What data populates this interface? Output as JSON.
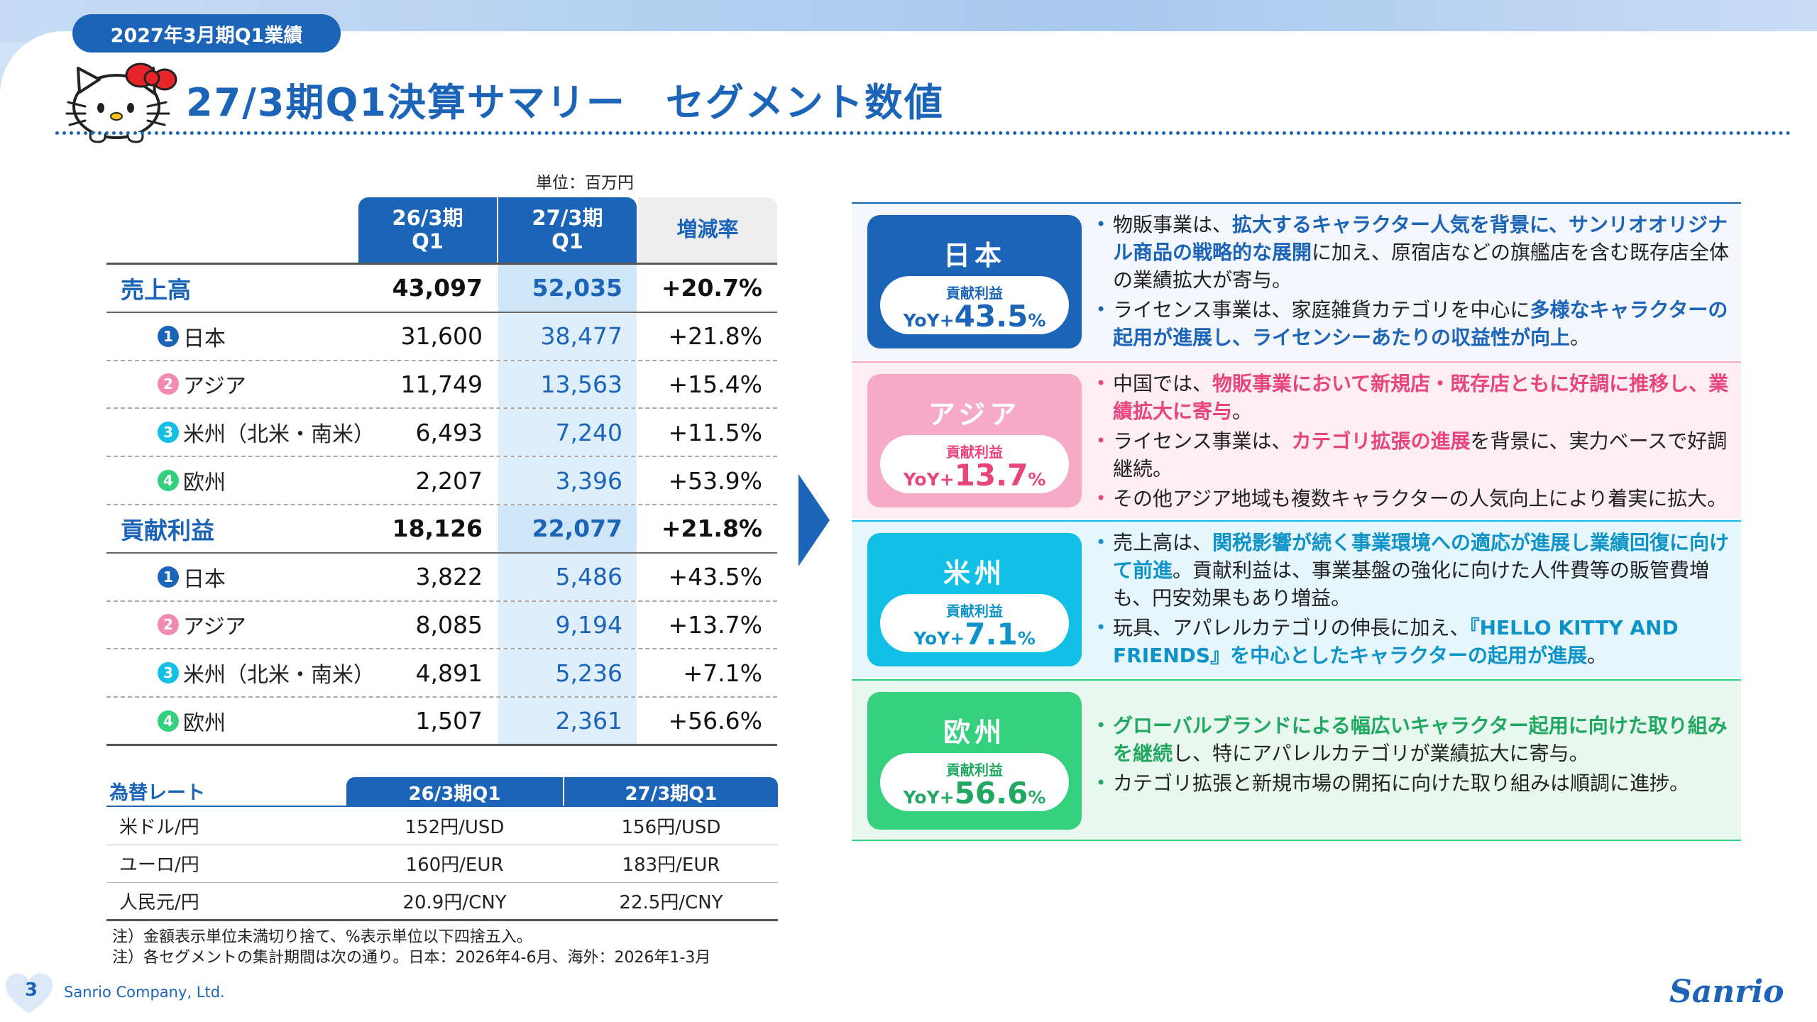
{
  "header": {
    "period_tag": "2027年3月期Q1業績",
    "title": "27/3期Q1決算サマリー　セグメント数値"
  },
  "table": {
    "unit": "単位：百万円",
    "col_prev": "26/3期\nQ1",
    "col_prev_l1": "26/3期",
    "col_prev_l2": "Q1",
    "col_curr_l1": "27/3期",
    "col_curr_l2": "Q1",
    "col_change": "増減率",
    "rows": [
      {
        "label": "売上高",
        "badge": "",
        "prev": "43,097",
        "curr": "52,035",
        "change": "+20.7%"
      },
      {
        "label": "日本",
        "badge": "1",
        "prev": "31,600",
        "curr": "38,477",
        "change": "+21.8%"
      },
      {
        "label": "アジア",
        "badge": "2",
        "prev": "11,749",
        "curr": "13,563",
        "change": "+15.4%"
      },
      {
        "label": "米州（北米・南米）",
        "badge": "3",
        "prev": "6,493",
        "curr": "7,240",
        "change": "+11.5%"
      },
      {
        "label": "欧州",
        "badge": "4",
        "prev": "2,207",
        "curr": "3,396",
        "change": "+53.9%"
      },
      {
        "label": "貢献利益",
        "badge": "",
        "prev": "18,126",
        "curr": "22,077",
        "change": "+21.8%"
      },
      {
        "label": "日本",
        "badge": "1",
        "prev": "3,822",
        "curr": "5,486",
        "change": "+43.5%"
      },
      {
        "label": "アジア",
        "badge": "2",
        "prev": "8,085",
        "curr": "9,194",
        "change": "+13.7%"
      },
      {
        "label": "米州（北米・南米）",
        "badge": "3",
        "prev": "4,891",
        "curr": "5,236",
        "change": "+7.1%"
      },
      {
        "label": "欧州",
        "badge": "4",
        "prev": "1,507",
        "curr": "2,361",
        "change": "+56.6%"
      }
    ]
  },
  "fx": {
    "title": "為替レート",
    "col_a": "26/3期Q1",
    "col_b": "27/3期Q1",
    "rows": [
      {
        "name": "米ドル/円",
        "a": "152円/USD",
        "b": "156円/USD"
      },
      {
        "name": "ユーロ/円",
        "a": "160円/EUR",
        "b": "183円/EUR"
      },
      {
        "name": "人民元/円",
        "a": "20.9円/CNY",
        "b": "22.5円/CNY"
      }
    ]
  },
  "notes": [
    "注）金額表示単位未満切り捨て、%表示単位以下四捨五入。",
    "注）各セグメントの集計期間は次の通り。日本：2026年4-6月、海外：2026年1-3月"
  ],
  "footer": {
    "page": "3",
    "company": "Sanrio Company, Ltd.",
    "logo": "Sanrio"
  },
  "segments": [
    {
      "name": "日本",
      "pill_label": "貢献利益",
      "yoy_prefix": "YoY+",
      "yoy_value": "43.5",
      "yoy_unit": "%",
      "bullets": [
        [
          {
            "t": "物販事業は、",
            "h": false
          },
          {
            "t": "拡大するキャラクター人気を背景に、サンリオオリジナル商品の戦略的な展開",
            "h": true
          },
          {
            "t": "に加え、原宿店などの旗艦店を含む既存店全体の業績拡大が寄与。",
            "h": false
          }
        ],
        [
          {
            "t": "ライセンス事業は、家庭雑貨カテゴリを中心に",
            "h": false
          },
          {
            "t": "多様なキャラクターの起用が進展し、ライセンシーあたりの収益性が向上",
            "h": true
          },
          {
            "t": "。",
            "h": false
          }
        ]
      ]
    },
    {
      "name": "アジア",
      "pill_label": "貢献利益",
      "yoy_prefix": "YoY+",
      "yoy_value": "13.7",
      "yoy_unit": "%",
      "bullets": [
        [
          {
            "t": "中国では、",
            "h": false
          },
          {
            "t": "物販事業において新規店・既存店ともに好調に推移し、業績拡大に寄与",
            "h": true
          },
          {
            "t": "。",
            "h": false
          }
        ],
        [
          {
            "t": "ライセンス事業は、",
            "h": false
          },
          {
            "t": "カテゴリ拡張の進展",
            "h": true
          },
          {
            "t": "を背景に、実力ベースで好調継続。",
            "h": false
          }
        ],
        [
          {
            "t": "その他アジア地域も複数キャラクターの人気向上により着実に拡大。",
            "h": false
          }
        ]
      ]
    },
    {
      "name": "米州",
      "pill_label": "貢献利益",
      "yoy_prefix": "YoY+",
      "yoy_value": "7.1",
      "yoy_unit": "%",
      "bullets": [
        [
          {
            "t": "売上高は、",
            "h": false
          },
          {
            "t": "関税影響が続く事業環境への適応が進展し業績回復に向けて前進",
            "h": true
          },
          {
            "t": "。貢献利益は、事業基盤の強化に向けた人件費等の販管費増も、円安効果もあり増益。",
            "h": false
          }
        ],
        [
          {
            "t": "玩具、アパレルカテゴリの伸長に加え、",
            "h": false
          },
          {
            "t": "『HELLO KITTY AND FRIENDS』を中心としたキャラクターの起用が進展",
            "h": true
          },
          {
            "t": "。",
            "h": false
          }
        ]
      ]
    },
    {
      "name": "欧州",
      "pill_label": "貢献利益",
      "yoy_prefix": "YoY+",
      "yoy_value": "56.6",
      "yoy_unit": "%",
      "bullets": [
        [
          {
            "t": "グローバルブランドによる幅広いキャラクター起用に向けた取り組みを継続",
            "h": true
          },
          {
            "t": "し、特にアパレルカテゴリが業績拡大に寄与。",
            "h": false
          }
        ],
        [
          {
            "t": "カテゴリ拡張と新規市場の開拓に向けた取り組みは順調に進捗。",
            "h": false
          }
        ]
      ]
    }
  ],
  "colors": {
    "brand_blue": "#1b64b8",
    "japan": "#1b64b8",
    "asia": "#f7a9c8",
    "asia_text": "#e8457f",
    "americas": "#12c0e6",
    "americas_text": "#0e93c9",
    "europe": "#34d07d",
    "europe_text": "#20a860"
  }
}
